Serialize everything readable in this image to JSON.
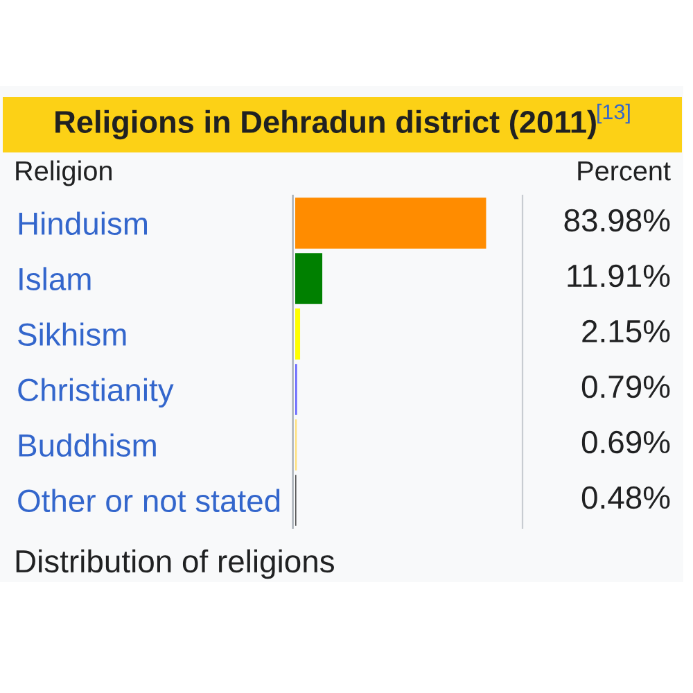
{
  "chart_data": {
    "type": "bar",
    "orientation": "horizontal",
    "title": "Religions in Dehradun district (2011)$^{[13]}$",
    "xlabel": "Percent",
    "ylabel": "Religion",
    "categories": [
      "Hinduism",
      "Islam",
      "Sikhism",
      "Christianity",
      "Buddhism",
      "Other or not stated"
    ],
    "values": [
      83.98,
      11.91,
      2.15,
      0.79,
      0.69,
      0.48
    ],
    "colors": [
      "#ff8c00",
      "#008000",
      "#ffff00",
      "#6666ff",
      "#ffe07a",
      "#505050"
    ],
    "value_labels": [
      "83.98%",
      "11.91%",
      "2.15%",
      "0.79%",
      "0.69%",
      "0.48%"
    ],
    "tick_labels": "y",
    "annotations": [
      "Distribution of religions"
    ]
  }
}
